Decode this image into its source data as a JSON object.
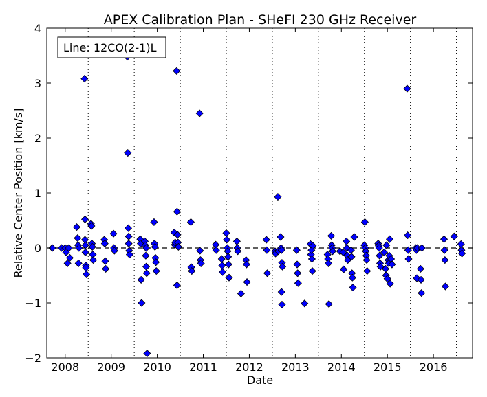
{
  "chart_data": {
    "type": "scatter",
    "title": "APEX Calibration Plan - SHeFI 230 GHz Receiver",
    "xlabel": "Date",
    "ylabel": "Relative Center Position [km/s]",
    "legend_text": "Line: 12CO(2-1)L",
    "legend_placement": "top-left",
    "xlim": [
      2007.6,
      2016.85
    ],
    "ylim": [
      -2,
      4
    ],
    "x_ticks": [
      2008,
      2009,
      2010,
      2011,
      2012,
      2013,
      2014,
      2015,
      2016
    ],
    "y_ticks": [
      -2,
      -1,
      0,
      1,
      2,
      3,
      4
    ],
    "reference_line_y": 0,
    "vertical_dotted_lines_x": [
      2008.5,
      2009.5,
      2010.5,
      2011.5,
      2012.5,
      2013.5,
      2014.5,
      2015.5,
      2016.5
    ],
    "marker_color": "#0000ff",
    "marker_edge_color": "#000000",
    "grid": false,
    "points": [
      [
        2007.72,
        0.0
      ],
      [
        2007.92,
        0.0
      ],
      [
        2008.0,
        0.0
      ],
      [
        2008.02,
        -0.08
      ],
      [
        2008.05,
        -0.28
      ],
      [
        2008.08,
        0.0
      ],
      [
        2008.1,
        -0.18
      ],
      [
        2008.25,
        0.38
      ],
      [
        2008.27,
        0.18
      ],
      [
        2008.28,
        0.05
      ],
      [
        2008.29,
        -0.28
      ],
      [
        2008.3,
        0.0
      ],
      [
        2008.42,
        3.08
      ],
      [
        2008.43,
        0.52
      ],
      [
        2008.43,
        0.15
      ],
      [
        2008.44,
        0.05
      ],
      [
        2008.44,
        -0.08
      ],
      [
        2008.45,
        -0.32
      ],
      [
        2008.45,
        -0.36
      ],
      [
        2008.46,
        -0.48
      ],
      [
        2008.56,
        0.44
      ],
      [
        2008.57,
        0.4
      ],
      [
        2008.58,
        0.08
      ],
      [
        2008.59,
        0.02
      ],
      [
        2008.6,
        -0.12
      ],
      [
        2008.61,
        -0.22
      ],
      [
        2008.85,
        0.15
      ],
      [
        2008.86,
        0.08
      ],
      [
        2008.87,
        -0.24
      ],
      [
        2008.88,
        -0.38
      ],
      [
        2009.05,
        0.26
      ],
      [
        2009.06,
        0.0
      ],
      [
        2009.07,
        -0.05
      ],
      [
        2009.35,
        3.48
      ],
      [
        2009.36,
        1.73
      ],
      [
        2009.37,
        0.36
      ],
      [
        2009.38,
        0.21
      ],
      [
        2009.38,
        0.08
      ],
      [
        2009.39,
        -0.05
      ],
      [
        2009.4,
        -0.12
      ],
      [
        2009.63,
        0.16
      ],
      [
        2009.64,
        0.08
      ],
      [
        2009.65,
        -0.58
      ],
      [
        2009.66,
        -1.0
      ],
      [
        2009.73,
        0.12
      ],
      [
        2009.74,
        0.05
      ],
      [
        2009.75,
        -0.14
      ],
      [
        2009.76,
        -0.34
      ],
      [
        2009.77,
        -0.46
      ],
      [
        2009.78,
        -1.92
      ],
      [
        2009.76,
        0.0
      ],
      [
        2009.93,
        0.47
      ],
      [
        2009.94,
        0.08
      ],
      [
        2009.95,
        0.02
      ],
      [
        2009.96,
        -0.18
      ],
      [
        2009.97,
        -0.26
      ],
      [
        2009.98,
        -0.42
      ],
      [
        2010.37,
        0.28
      ],
      [
        2010.38,
        0.06
      ],
      [
        2010.39,
        0.1
      ],
      [
        2010.42,
        3.22
      ],
      [
        2010.43,
        0.66
      ],
      [
        2010.44,
        0.24
      ],
      [
        2010.45,
        0.1
      ],
      [
        2010.46,
        0.02
      ],
      [
        2010.43,
        -0.68
      ],
      [
        2010.73,
        0.47
      ],
      [
        2010.74,
        -0.35
      ],
      [
        2010.75,
        -0.42
      ],
      [
        2010.92,
        2.45
      ],
      [
        2010.93,
        -0.05
      ],
      [
        2010.94,
        -0.22
      ],
      [
        2010.95,
        -0.28
      ],
      [
        2011.27,
        0.06
      ],
      [
        2011.28,
        -0.04
      ],
      [
        2011.4,
        -0.2
      ],
      [
        2011.41,
        -0.32
      ],
      [
        2011.42,
        -0.44
      ],
      [
        2011.5,
        0.27
      ],
      [
        2011.51,
        0.15
      ],
      [
        2011.52,
        0.0
      ],
      [
        2011.53,
        -0.06
      ],
      [
        2011.54,
        -0.16
      ],
      [
        2011.55,
        -0.3
      ],
      [
        2011.56,
        -0.54
      ],
      [
        2011.73,
        0.12
      ],
      [
        2011.74,
        0.0
      ],
      [
        2011.75,
        -0.06
      ],
      [
        2011.82,
        -0.83
      ],
      [
        2011.93,
        -0.22
      ],
      [
        2011.94,
        -0.3
      ],
      [
        2011.95,
        -0.62
      ],
      [
        2012.37,
        0.15
      ],
      [
        2012.38,
        -0.04
      ],
      [
        2012.39,
        -0.46
      ],
      [
        2012.56,
        -0.06
      ],
      [
        2012.57,
        -0.1
      ],
      [
        2012.62,
        0.93
      ],
      [
        2012.63,
        -0.06
      ],
      [
        2012.68,
        0.2
      ],
      [
        2012.69,
        0.0
      ],
      [
        2012.7,
        -0.04
      ],
      [
        2012.71,
        -0.27
      ],
      [
        2012.72,
        -0.34
      ],
      [
        2012.7,
        -0.8
      ],
      [
        2012.71,
        -1.03
      ],
      [
        2013.03,
        -0.04
      ],
      [
        2013.04,
        -0.3
      ],
      [
        2013.05,
        -0.46
      ],
      [
        2013.06,
        -0.64
      ],
      [
        2013.2,
        -1.01
      ],
      [
        2013.33,
        0.07
      ],
      [
        2013.34,
        -0.12
      ],
      [
        2013.35,
        -0.04
      ],
      [
        2013.36,
        -0.2
      ],
      [
        2013.37,
        -0.42
      ],
      [
        2013.38,
        0.04
      ],
      [
        2013.7,
        -0.12
      ],
      [
        2013.71,
        -0.2
      ],
      [
        2013.72,
        -0.28
      ],
      [
        2013.73,
        -1.02
      ],
      [
        2013.78,
        0.22
      ],
      [
        2013.79,
        0.05
      ],
      [
        2013.8,
        0.0
      ],
      [
        2013.81,
        -0.06
      ],
      [
        2013.97,
        -0.06
      ],
      [
        2014.04,
        -0.08
      ],
      [
        2014.05,
        -0.39
      ],
      [
        2014.11,
        0.12
      ],
      [
        2014.12,
        0.0
      ],
      [
        2014.13,
        -0.14
      ],
      [
        2014.14,
        -0.22
      ],
      [
        2014.21,
        -0.04
      ],
      [
        2014.22,
        -0.16
      ],
      [
        2014.23,
        -0.46
      ],
      [
        2014.24,
        -0.54
      ],
      [
        2014.25,
        -0.72
      ],
      [
        2014.28,
        0.2
      ],
      [
        2014.51,
        0.47
      ],
      [
        2014.5,
        0.05
      ],
      [
        2014.52,
        0.0
      ],
      [
        2014.53,
        -0.06
      ],
      [
        2014.54,
        -0.14
      ],
      [
        2014.55,
        -0.22
      ],
      [
        2014.56,
        -0.42
      ],
      [
        2014.8,
        0.08
      ],
      [
        2014.81,
        0.04
      ],
      [
        2014.82,
        0.0
      ],
      [
        2014.83,
        -0.14
      ],
      [
        2014.84,
        -0.28
      ],
      [
        2014.85,
        -0.34
      ],
      [
        2014.93,
        -0.08
      ],
      [
        2014.96,
        -0.38
      ],
      [
        2014.97,
        -0.5
      ],
      [
        2014.98,
        0.05
      ],
      [
        2015.0,
        -0.56
      ],
      [
        2015.02,
        -0.22
      ],
      [
        2015.03,
        -0.28
      ],
      [
        2015.04,
        -0.14
      ],
      [
        2015.05,
        0.16
      ],
      [
        2015.06,
        -0.65
      ],
      [
        2015.08,
        -0.2
      ],
      [
        2015.1,
        -0.3
      ],
      [
        2015.43,
        2.9
      ],
      [
        2015.44,
        0.23
      ],
      [
        2015.45,
        -0.04
      ],
      [
        2015.46,
        -0.2
      ],
      [
        2015.62,
        0.0
      ],
      [
        2015.63,
        -0.04
      ],
      [
        2015.64,
        -0.55
      ],
      [
        2015.65,
        0.0
      ],
      [
        2015.72,
        -0.38
      ],
      [
        2015.73,
        -0.58
      ],
      [
        2015.74,
        -0.82
      ],
      [
        2015.75,
        0.0
      ],
      [
        2016.23,
        0.16
      ],
      [
        2016.24,
        -0.04
      ],
      [
        2016.25,
        -0.22
      ],
      [
        2016.26,
        -0.7
      ],
      [
        2016.45,
        0.21
      ],
      [
        2016.6,
        0.07
      ],
      [
        2016.61,
        -0.04
      ],
      [
        2016.62,
        -0.1
      ]
    ]
  }
}
